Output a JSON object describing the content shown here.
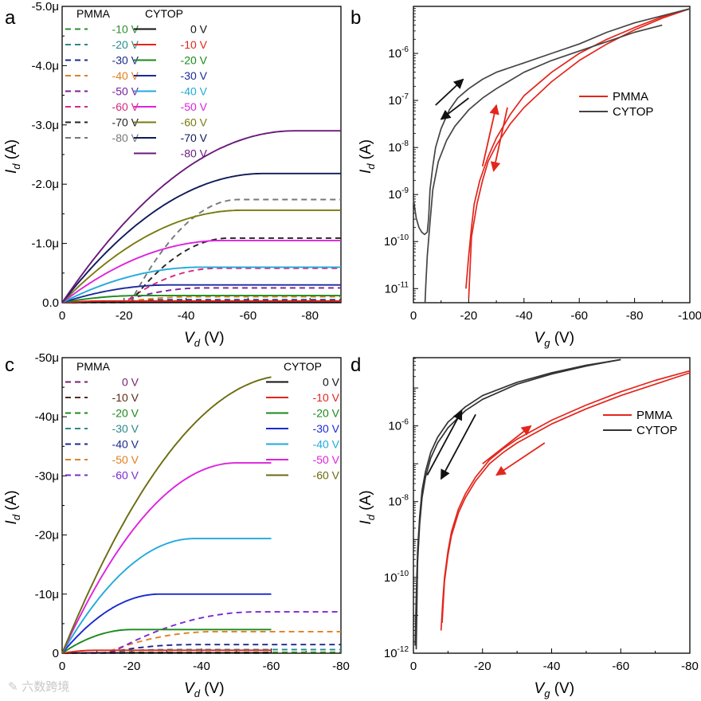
{
  "watermark": "六数跨境",
  "chart_data": [
    {
      "panel": "a",
      "type": "line",
      "xlabel": "V",
      "xlabel_sub": "d",
      "xlabel_unit": "(V)",
      "ylabel": "I",
      "ylabel_sub": "d",
      "ylabel_unit": "(A)",
      "xlim": [
        0,
        -90
      ],
      "ylim": [
        0,
        -5.0
      ],
      "xticks": [
        0,
        -20,
        -40,
        -60,
        -80
      ],
      "xtick_labels": [
        "0",
        "-20",
        "-40",
        "-60",
        "-80"
      ],
      "yticks": [
        0,
        -1.0,
        -2.0,
        -3.0,
        -4.0,
        -5.0
      ],
      "ytick_labels": [
        "0.0",
        "-1.0μ",
        "-2.0μ",
        "-3.0μ",
        "-4.0μ",
        "-5.0μ"
      ],
      "legend_titles": [
        "PMMA",
        "CYTOP"
      ],
      "series": [
        {
          "group": "PMMA",
          "name": "-10 V",
          "color": "#2e8b2e",
          "dash": true,
          "vth": 0,
          "sat": 0.01,
          "vsat": 10
        },
        {
          "group": "PMMA",
          "name": "-20 V",
          "color": "#2a8a8a",
          "dash": true,
          "vth": -14,
          "sat": 0.02,
          "vsat": 20
        },
        {
          "group": "PMMA",
          "name": "-30 V",
          "color": "#1c2a8c",
          "dash": true,
          "vth": -16,
          "sat": 0.05,
          "vsat": 20
        },
        {
          "group": "PMMA",
          "name": "-40 V",
          "color": "#e08020",
          "dash": true,
          "vth": -18,
          "sat": 0.1,
          "vsat": 25
        },
        {
          "group": "PMMA",
          "name": "-50 V",
          "color": "#7a1fa0",
          "dash": true,
          "vth": -18,
          "sat": 0.25,
          "vsat": 28
        },
        {
          "group": "PMMA",
          "name": "-60 V",
          "color": "#d42a80",
          "dash": true,
          "vth": -20,
          "sat": 0.58,
          "vsat": 30
        },
        {
          "group": "PMMA",
          "name": "-70 V",
          "color": "#222222",
          "dash": true,
          "vth": -22,
          "sat": 1.09,
          "vsat": 32
        },
        {
          "group": "PMMA",
          "name": "-80 V",
          "color": "#777777",
          "dash": true,
          "vth": -22,
          "sat": 1.74,
          "vsat": 35
        },
        {
          "group": "CYTOP",
          "name": "0 V",
          "color": "#111111",
          "dash": false,
          "vth": 0,
          "sat": 0.005,
          "vsat": 10
        },
        {
          "group": "CYTOP",
          "name": "-10 V",
          "color": "#e3261c",
          "dash": false,
          "vth": 0,
          "sat": 0.03,
          "vsat": 15
        },
        {
          "group": "CYTOP",
          "name": "-20 V",
          "color": "#1a8a1a",
          "dash": false,
          "vth": 0,
          "sat": 0.12,
          "vsat": 25
        },
        {
          "group": "CYTOP",
          "name": "-30 V",
          "color": "#1a2a9c",
          "dash": false,
          "vth": 0,
          "sat": 0.3,
          "vsat": 35
        },
        {
          "group": "CYTOP",
          "name": "-40 V",
          "color": "#22aadd",
          "dash": false,
          "vth": 0,
          "sat": 0.6,
          "vsat": 45
        },
        {
          "group": "CYTOP",
          "name": "-50 V",
          "color": "#dd22dd",
          "dash": false,
          "vth": 0,
          "sat": 1.05,
          "vsat": 52
        },
        {
          "group": "CYTOP",
          "name": "-60 V",
          "color": "#7a7a10",
          "dash": false,
          "vth": 0,
          "sat": 1.56,
          "vsat": 58
        },
        {
          "group": "CYTOP",
          "name": "-70 V",
          "color": "#0f1a5a",
          "dash": false,
          "vth": 0,
          "sat": 2.18,
          "vsat": 65
        },
        {
          "group": "CYTOP",
          "name": "-80 V",
          "color": "#6a1a7a",
          "dash": false,
          "vth": 0,
          "sat": 2.9,
          "vsat": 75
        }
      ]
    },
    {
      "panel": "b",
      "type": "line",
      "yscale": "log",
      "xlabel": "V",
      "xlabel_sub": "g",
      "xlabel_unit": "(V)",
      "ylabel": "I",
      "ylabel_sub": "d",
      "ylabel_unit": "(A)",
      "xlim": [
        0,
        -100
      ],
      "ylim_exp": [
        -11.3,
        -5
      ],
      "xticks": [
        0,
        -20,
        -40,
        -60,
        -80,
        -100
      ],
      "xtick_labels": [
        "0",
        "-20",
        "-40",
        "-60",
        "-80",
        "-100"
      ],
      "ytick_exps": [
        -6,
        -7,
        -8,
        -9,
        -10,
        -11
      ],
      "legend": [
        {
          "name": "PMMA",
          "color": "#e3261c"
        },
        {
          "name": "CYTOP",
          "color": "#444444"
        }
      ],
      "series": [
        {
          "name": "PMMA forward",
          "color": "#e3261c",
          "x": [
            -19,
            -20,
            -21,
            -22,
            -24,
            -27,
            -30,
            -35,
            -40,
            -50,
            -60,
            -70,
            -80,
            -90,
            -100
          ],
          "logy": [
            -11,
            -10.3,
            -9.7,
            -9.2,
            -8.7,
            -8.2,
            -7.8,
            -7.3,
            -6.9,
            -6.4,
            -6.0,
            -5.7,
            -5.45,
            -5.22,
            -5.05
          ]
        },
        {
          "name": "PMMA reverse",
          "color": "#e3261c",
          "x": [
            -100,
            -90,
            -80,
            -70,
            -60,
            -50,
            -40,
            -35,
            -30,
            -27,
            -25,
            -23,
            -21,
            -20
          ],
          "logy": [
            -5.05,
            -5.25,
            -5.5,
            -5.8,
            -6.15,
            -6.6,
            -7.15,
            -7.5,
            -7.95,
            -8.3,
            -8.7,
            -9.2,
            -9.9,
            -11.2
          ]
        },
        {
          "name": "CYTOP forward",
          "color": "#444444",
          "x": [
            0,
            -1,
            -2,
            -3,
            -4,
            -5,
            -5.5,
            -6,
            -7,
            -8,
            -10,
            -13,
            -16,
            -20,
            -25,
            -30,
            -40,
            -50,
            -60,
            -70,
            -80,
            -90,
            -100
          ],
          "logy": [
            -9.1,
            -9.5,
            -9.7,
            -9.8,
            -9.85,
            -9.8,
            -9.5,
            -8.9,
            -8.4,
            -8.0,
            -7.6,
            -7.2,
            -6.95,
            -6.75,
            -6.55,
            -6.4,
            -6.2,
            -6.0,
            -5.8,
            -5.55,
            -5.35,
            -5.2,
            -5.05
          ]
        },
        {
          "name": "CYTOP reverse",
          "color": "#444444",
          "x": [
            -90,
            -80,
            -70,
            -60,
            -50,
            -40,
            -30,
            -25,
            -20,
            -15,
            -12,
            -9,
            -7,
            -6,
            -5,
            -4.5,
            -4.2
          ],
          "logy": [
            -5.4,
            -5.55,
            -5.75,
            -5.95,
            -6.15,
            -6.4,
            -6.75,
            -6.95,
            -7.2,
            -7.55,
            -7.85,
            -8.3,
            -8.9,
            -9.6,
            -10.3,
            -10.9,
            -11.3
          ]
        },
        {
          "name": "CYTOP offset tick",
          "color": "#444444",
          "x": [
            0,
            0,
            0
          ],
          "logy": [
            -10.3,
            -10.5,
            -10.8
          ]
        }
      ],
      "arrows": [
        {
          "color": "#111111",
          "from": [
            -8,
            -7.1
          ],
          "to": [
            -18,
            -6.55
          ]
        },
        {
          "color": "#111111",
          "from": [
            -20,
            -6.95
          ],
          "to": [
            -10,
            -7.4
          ]
        },
        {
          "color": "#e3261c",
          "from": [
            -25,
            -8.4
          ],
          "to": [
            -30,
            -7.1
          ]
        },
        {
          "color": "#e3261c",
          "from": [
            -34,
            -7.15
          ],
          "to": [
            -29,
            -8.5
          ]
        }
      ]
    },
    {
      "panel": "c",
      "type": "line",
      "xlabel": "V",
      "xlabel_sub": "d",
      "xlabel_unit": "(V)",
      "ylabel": "I",
      "ylabel_sub": "d",
      "ylabel_unit": "(A)",
      "xlim": [
        0,
        -80
      ],
      "ylim": [
        0,
        -50
      ],
      "xticks": [
        0,
        -20,
        -40,
        -60,
        -80
      ],
      "xtick_labels": [
        "0",
        "-20",
        "-40",
        "-60",
        "-80"
      ],
      "yticks": [
        0,
        -10,
        -20,
        -30,
        -40,
        -50
      ],
      "ytick_labels": [
        "0",
        "-10μ",
        "-20μ",
        "-30μ",
        "-40μ",
        "-50μ"
      ],
      "legend_titles": [
        "PMMA",
        "CYTOP"
      ],
      "series": [
        {
          "group": "PMMA",
          "name": "0 V",
          "color": "#7a1f6a",
          "dash": true,
          "vth": 0,
          "sat": 0.02,
          "vsat": 10,
          "xmax": -80
        },
        {
          "group": "PMMA",
          "name": "-10 V",
          "color": "#5a2a1a",
          "dash": true,
          "vth": 0,
          "sat": 0.05,
          "vsat": 10,
          "xmax": -80
        },
        {
          "group": "PMMA",
          "name": "-20 V",
          "color": "#1a8a1a",
          "dash": true,
          "vth": -10,
          "sat": 0.15,
          "vsat": 15,
          "xmax": -80
        },
        {
          "group": "PMMA",
          "name": "-30 V",
          "color": "#2a8a8a",
          "dash": true,
          "vth": -10,
          "sat": 0.6,
          "vsat": 20,
          "xmax": -80
        },
        {
          "group": "PMMA",
          "name": "-40 V",
          "color": "#1a2a8c",
          "dash": true,
          "vth": -12,
          "sat": 1.45,
          "vsat": 25,
          "xmax": -80
        },
        {
          "group": "PMMA",
          "name": "-50 V",
          "color": "#e08020",
          "dash": true,
          "vth": -12,
          "sat": 3.65,
          "vsat": 32,
          "xmax": -80
        },
        {
          "group": "PMMA",
          "name": "-60 V",
          "color": "#7a2ad0",
          "dash": true,
          "vth": -14,
          "sat": 7.0,
          "vsat": 42,
          "xmax": -80
        },
        {
          "group": "CYTOP",
          "name": "0 V",
          "color": "#111111",
          "dash": false,
          "vth": 0,
          "sat": 0.05,
          "vsat": 8,
          "xmax": -60
        },
        {
          "group": "CYTOP",
          "name": "-10 V",
          "color": "#e3261c",
          "dash": false,
          "vth": 0,
          "sat": 0.5,
          "vsat": 10,
          "xmax": -60
        },
        {
          "group": "CYTOP",
          "name": "-20 V",
          "color": "#1a8a1a",
          "dash": false,
          "vth": 0,
          "sat": 4.0,
          "vsat": 20,
          "xmax": -60
        },
        {
          "group": "CYTOP",
          "name": "-30 V",
          "color": "#1a2ad0",
          "dash": false,
          "vth": 0,
          "sat": 10.0,
          "vsat": 28,
          "xmax": -60
        },
        {
          "group": "CYTOP",
          "name": "-40 V",
          "color": "#22aadd",
          "dash": false,
          "vth": 0,
          "sat": 19.4,
          "vsat": 38,
          "xmax": -60
        },
        {
          "group": "CYTOP",
          "name": "-50 V",
          "color": "#dd22dd",
          "dash": false,
          "vth": 0,
          "sat": 32.2,
          "vsat": 50,
          "xmax": -60
        },
        {
          "group": "CYTOP",
          "name": "-60 V",
          "color": "#6b6b10",
          "dash": false,
          "vth": 0,
          "sat": 47.0,
          "vsat": 65,
          "xmax": -60
        }
      ]
    },
    {
      "panel": "d",
      "type": "line",
      "yscale": "log",
      "xlabel": "V",
      "xlabel_sub": "g",
      "xlabel_unit": "(V)",
      "ylabel": "I",
      "ylabel_sub": "d",
      "ylabel_unit": "(A)",
      "xlim": [
        0,
        -80
      ],
      "ylim_exp": [
        -12,
        -4.2
      ],
      "xticks": [
        0,
        -20,
        -40,
        -60,
        -80
      ],
      "xtick_labels": [
        "0",
        "-20",
        "-40",
        "-60",
        "-80"
      ],
      "ytick_exps": [
        -6,
        -8,
        -10,
        -12
      ],
      "legend": [
        {
          "name": "PMMA",
          "color": "#e3261c"
        },
        {
          "name": "CYTOP",
          "color": "#333333"
        }
      ],
      "series": [
        {
          "name": "PMMA forward",
          "color": "#e3261c",
          "x": [
            -8,
            -8.5,
            -9,
            -10,
            -11,
            -13,
            -15,
            -18,
            -22,
            -26,
            -30,
            -35,
            -40,
            -50,
            -60,
            -70,
            -80
          ],
          "logy": [
            -11.4,
            -10.6,
            -10.0,
            -9.3,
            -8.8,
            -8.2,
            -7.8,
            -7.35,
            -6.9,
            -6.6,
            -6.35,
            -6.1,
            -5.85,
            -5.45,
            -5.1,
            -4.8,
            -4.55
          ]
        },
        {
          "name": "PMMA reverse",
          "color": "#e3261c",
          "x": [
            -80,
            -70,
            -60,
            -50,
            -40,
            -35,
            -30,
            -26,
            -22,
            -18,
            -15,
            -13,
            -11,
            -10,
            -9,
            -8.3
          ],
          "logy": [
            -4.6,
            -4.9,
            -5.2,
            -5.55,
            -5.95,
            -6.2,
            -6.45,
            -6.7,
            -7.0,
            -7.45,
            -7.9,
            -8.3,
            -8.9,
            -9.4,
            -10.1,
            -11.2
          ]
        },
        {
          "name": "CYTOP forward",
          "color": "#333333",
          "x": [
            -0.5,
            -0.8,
            -1.2,
            -1.8,
            -2.5,
            -3.5,
            -5,
            -7,
            -10,
            -15,
            -20,
            -30,
            -40,
            -50,
            -60
          ],
          "logy": [
            -11.8,
            -10.5,
            -9.3,
            -8.4,
            -7.7,
            -7.2,
            -6.7,
            -6.3,
            -5.9,
            -5.5,
            -5.2,
            -4.85,
            -4.6,
            -4.4,
            -4.25
          ]
        },
        {
          "name": "CYTOP reverse",
          "color": "#333333",
          "x": [
            -60,
            -50,
            -40,
            -30,
            -20,
            -15,
            -10,
            -7,
            -5,
            -3.5,
            -2.5,
            -1.8,
            -1.2,
            -0.8
          ],
          "logy": [
            -4.25,
            -4.42,
            -4.63,
            -4.9,
            -5.3,
            -5.6,
            -6.05,
            -6.45,
            -6.85,
            -7.35,
            -7.9,
            -8.6,
            -9.6,
            -11.9
          ]
        }
      ],
      "arrows": [
        {
          "color": "#111111",
          "from": [
            -4,
            -7.3
          ],
          "to": [
            -14,
            -5.6
          ]
        },
        {
          "color": "#111111",
          "from": [
            -18,
            -5.7
          ],
          "to": [
            -8,
            -7.4
          ]
        },
        {
          "color": "#e3261c",
          "from": [
            -20,
            -7.0
          ],
          "to": [
            -34,
            -6.0
          ]
        },
        {
          "color": "#e3261c",
          "from": [
            -38,
            -6.45
          ],
          "to": [
            -24,
            -7.3
          ]
        }
      ]
    }
  ]
}
